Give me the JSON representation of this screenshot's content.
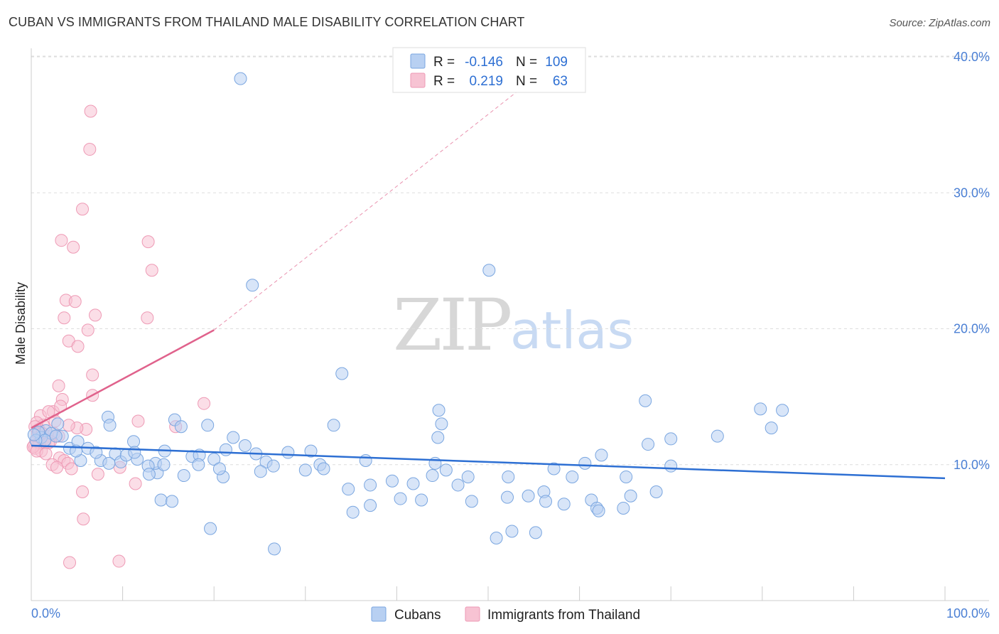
{
  "title": "CUBAN VS IMMIGRANTS FROM THAILAND MALE DISABILITY CORRELATION CHART",
  "source": "Source: ZipAtlas.com",
  "watermark": {
    "zip": "ZIP",
    "atlas": "atlas"
  },
  "colors": {
    "cubans_fill": "#b8d0f2",
    "cubans_stroke": "#7aa6e0",
    "cubans_line": "#2d6fd3",
    "thai_fill": "#f7c3d3",
    "thai_stroke": "#ee9ab5",
    "thai_line": "#e0628c",
    "tick_label": "#4a7fd4",
    "grid": "#dddddd"
  },
  "legend": {
    "rows": [
      {
        "r_label": "R =",
        "r_value": "-0.146",
        "n_label": "N =",
        "n_value": "109"
      },
      {
        "r_label": "R =",
        "r_value": "0.219",
        "n_label": "N =",
        "n_value": "63"
      }
    ]
  },
  "chart_data": {
    "type": "scatter",
    "title": "CUBAN VS IMMIGRANTS FROM THAILAND MALE DISABILITY CORRELATION CHART",
    "xlabel": "",
    "ylabel": "Male Disability",
    "xlim": [
      0,
      100
    ],
    "ylim": [
      0,
      40
    ],
    "x_tick_labels": [
      "0.0%",
      "100.0%"
    ],
    "y_ticks": [
      10,
      20,
      30,
      40
    ],
    "y_tick_labels": [
      "10.0%",
      "20.0%",
      "30.0%",
      "40.0%"
    ],
    "grid": true,
    "legend_position": "top-center",
    "series": [
      {
        "name": "Cubans",
        "r": -0.146,
        "n": 109,
        "trend": {
          "x": [
            0,
            100
          ],
          "y": [
            11.4,
            9.0
          ]
        },
        "points": [
          [
            22.9,
            38.4
          ],
          [
            24.2,
            23.2
          ],
          [
            50.1,
            24.3
          ],
          [
            34.0,
            16.7
          ],
          [
            67.2,
            14.7
          ],
          [
            79.8,
            14.1
          ],
          [
            82.2,
            14.0
          ],
          [
            44.6,
            14.0
          ],
          [
            33.1,
            12.9
          ],
          [
            44.9,
            13.0
          ],
          [
            44.5,
            12.0
          ],
          [
            81.0,
            12.7
          ],
          [
            75.1,
            12.1
          ],
          [
            70.0,
            11.9
          ],
          [
            67.5,
            11.5
          ],
          [
            8.4,
            13.5
          ],
          [
            8.6,
            12.9
          ],
          [
            15.7,
            13.3
          ],
          [
            16.4,
            12.8
          ],
          [
            19.3,
            12.9
          ],
          [
            2.9,
            13.0
          ],
          [
            3.4,
            12.1
          ],
          [
            1.6,
            12.5
          ],
          [
            2.2,
            12.3
          ],
          [
            1.1,
            12.0
          ],
          [
            0.8,
            12.4
          ],
          [
            1.5,
            11.8
          ],
          [
            0.5,
            11.8
          ],
          [
            0.3,
            12.2
          ],
          [
            2.7,
            12.1
          ],
          [
            4.2,
            11.2
          ],
          [
            5.1,
            11.7
          ],
          [
            6.2,
            11.2
          ],
          [
            9.2,
            10.8
          ],
          [
            11.2,
            11.7
          ],
          [
            14.6,
            11.0
          ],
          [
            17.6,
            10.6
          ],
          [
            18.4,
            10.7
          ],
          [
            20.0,
            10.4
          ],
          [
            21.3,
            11.1
          ],
          [
            22.1,
            12.0
          ],
          [
            23.4,
            11.4
          ],
          [
            24.6,
            10.8
          ],
          [
            25.7,
            10.2
          ],
          [
            28.1,
            10.9
          ],
          [
            30.6,
            11.0
          ],
          [
            36.6,
            10.3
          ],
          [
            31.6,
            10.0
          ],
          [
            32.0,
            9.7
          ],
          [
            44.2,
            10.1
          ],
          [
            45.4,
            9.6
          ],
          [
            52.2,
            9.1
          ],
          [
            57.2,
            9.7
          ],
          [
            59.2,
            9.1
          ],
          [
            60.6,
            10.1
          ],
          [
            62.4,
            10.7
          ],
          [
            65.1,
            9.1
          ],
          [
            70.0,
            9.9
          ],
          [
            68.4,
            8.0
          ],
          [
            54.4,
            7.7
          ],
          [
            56.1,
            8.0
          ],
          [
            41.8,
            8.6
          ],
          [
            43.9,
            9.2
          ],
          [
            47.8,
            9.1
          ],
          [
            30.0,
            9.6
          ],
          [
            26.5,
            9.9
          ],
          [
            25.1,
            9.5
          ],
          [
            21.0,
            9.1
          ],
          [
            20.6,
            9.7
          ],
          [
            16.7,
            9.2
          ],
          [
            13.8,
            9.4
          ],
          [
            13.6,
            10.1
          ],
          [
            14.5,
            10.0
          ],
          [
            12.8,
            9.9
          ],
          [
            12.9,
            9.3
          ],
          [
            11.6,
            10.4
          ],
          [
            9.8,
            10.2
          ],
          [
            10.4,
            10.7
          ],
          [
            7.6,
            10.3
          ],
          [
            8.5,
            10.1
          ],
          [
            7.1,
            10.9
          ],
          [
            5.4,
            10.3
          ],
          [
            4.9,
            11.0
          ],
          [
            18.3,
            10.0
          ],
          [
            11.3,
            10.9
          ],
          [
            39.5,
            8.8
          ],
          [
            34.7,
            8.2
          ],
          [
            37.1,
            8.5
          ],
          [
            35.2,
            6.5
          ],
          [
            37.1,
            7.0
          ],
          [
            40.4,
            7.5
          ],
          [
            42.7,
            7.4
          ],
          [
            46.7,
            8.5
          ],
          [
            48.2,
            7.3
          ],
          [
            52.1,
            7.6
          ],
          [
            56.3,
            7.3
          ],
          [
            58.3,
            7.1
          ],
          [
            61.3,
            7.4
          ],
          [
            61.9,
            6.8
          ],
          [
            55.2,
            5.0
          ],
          [
            50.9,
            4.6
          ],
          [
            52.6,
            5.1
          ],
          [
            65.6,
            7.7
          ],
          [
            64.8,
            6.8
          ],
          [
            62.1,
            6.6
          ],
          [
            14.2,
            7.4
          ],
          [
            15.4,
            7.3
          ],
          [
            19.6,
            5.3
          ],
          [
            26.6,
            3.8
          ]
        ]
      },
      {
        "name": "Immigrants from Thailand",
        "r": 0.219,
        "n": 63,
        "trend_solid": {
          "x": [
            0,
            20
          ],
          "y": [
            12.7,
            19.9
          ]
        },
        "trend_dashed": {
          "x": [
            20,
            58
          ],
          "y": [
            19.9,
            40.0
          ]
        },
        "points": [
          [
            6.5,
            36.0
          ],
          [
            6.4,
            33.2
          ],
          [
            5.6,
            28.8
          ],
          [
            3.3,
            26.5
          ],
          [
            4.6,
            26.0
          ],
          [
            12.8,
            26.4
          ],
          [
            13.2,
            24.3
          ],
          [
            3.8,
            22.1
          ],
          [
            4.8,
            22.0
          ],
          [
            3.6,
            20.8
          ],
          [
            7.0,
            21.0
          ],
          [
            12.7,
            20.8
          ],
          [
            6.2,
            19.9
          ],
          [
            4.1,
            19.1
          ],
          [
            5.1,
            18.7
          ],
          [
            6.7,
            16.6
          ],
          [
            3.0,
            15.8
          ],
          [
            3.4,
            14.8
          ],
          [
            6.7,
            15.1
          ],
          [
            1.0,
            13.6
          ],
          [
            2.4,
            13.9
          ],
          [
            3.2,
            14.3
          ],
          [
            1.9,
            13.9
          ],
          [
            18.9,
            14.5
          ],
          [
            11.7,
            13.2
          ],
          [
            15.8,
            12.8
          ],
          [
            6.0,
            12.6
          ],
          [
            5.0,
            12.7
          ],
          [
            4.1,
            12.9
          ],
          [
            2.6,
            13.2
          ],
          [
            1.3,
            12.9
          ],
          [
            0.8,
            12.6
          ],
          [
            0.6,
            13.1
          ],
          [
            0.4,
            12.8
          ],
          [
            0.7,
            12.3
          ],
          [
            1.2,
            12.3
          ],
          [
            1.8,
            12.1
          ],
          [
            2.5,
            12.3
          ],
          [
            3.0,
            12.1
          ],
          [
            1.5,
            11.6
          ],
          [
            2.1,
            11.7
          ],
          [
            0.5,
            11.7
          ],
          [
            0.3,
            11.4
          ],
          [
            0.4,
            11.2
          ],
          [
            1.1,
            11.0
          ],
          [
            0.9,
            11.6
          ],
          [
            0.2,
            11.3
          ],
          [
            0.6,
            11.0
          ],
          [
            1.9,
            11.6
          ],
          [
            3.1,
            10.5
          ],
          [
            3.6,
            10.3
          ],
          [
            2.3,
            10.0
          ],
          [
            4.0,
            10.1
          ],
          [
            4.4,
            9.7
          ],
          [
            2.8,
            9.8
          ],
          [
            7.3,
            9.3
          ],
          [
            9.7,
            9.8
          ],
          [
            11.4,
            8.6
          ],
          [
            5.6,
            8.0
          ],
          [
            5.7,
            6.0
          ],
          [
            4.2,
            2.8
          ],
          [
            9.6,
            2.9
          ],
          [
            1.6,
            10.8
          ]
        ]
      }
    ]
  }
}
